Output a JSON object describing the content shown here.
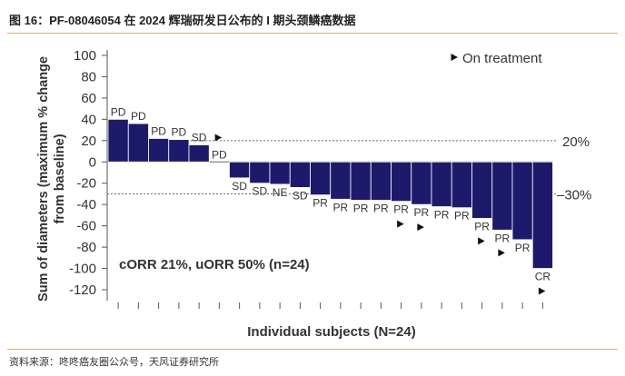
{
  "figure": {
    "title": "图 16：PF-08046054 在 2024 辉瑞研发日公布的 I 期头颈鳞癌数据",
    "source": "资料来源：咚咚癌友圈公众号，天风证券研究所"
  },
  "colors": {
    "bar": "#1d1a6c",
    "rule": "#dfae78",
    "text": "#333333",
    "axis": "#555555"
  },
  "chart_data": {
    "type": "bar",
    "title": "",
    "xlabel": "Individual subjects (N=24)",
    "ylabel_lines": [
      "Sum of diameters (maximum % change",
      "from baseline)"
    ],
    "ylim": [
      -120,
      100
    ],
    "yticks": [
      100,
      80,
      60,
      40,
      20,
      0,
      -20,
      -40,
      -60,
      -80,
      -100,
      -120
    ],
    "grid": false,
    "values": [
      40,
      36,
      22,
      21,
      16,
      0,
      -15,
      -20,
      -21,
      -24,
      -31,
      -35,
      -36,
      -36,
      -37,
      -40,
      -42,
      -43,
      -53,
      -64,
      -73,
      -100
    ],
    "responses": [
      "PD",
      "PD",
      "PD",
      "PD",
      "SD",
      "PD",
      "SD",
      "SD",
      "NE",
      "SD",
      "PR",
      "PR",
      "PR",
      "PR",
      "PR",
      "PR",
      "PR",
      "PR",
      "PR",
      "PR",
      "PR",
      "CR"
    ],
    "on_treatment": [
      false,
      false,
      false,
      false,
      true,
      false,
      false,
      false,
      false,
      false,
      false,
      false,
      false,
      false,
      true,
      true,
      false,
      false,
      true,
      true,
      false,
      true
    ],
    "legend": {
      "label": "On treatment",
      "placement": "top-right",
      "marker": "right-triangle"
    },
    "reference_lines": [
      {
        "value": 20,
        "label": "20%"
      },
      {
        "value": -30,
        "label": "–30%"
      }
    ],
    "annotation": "cORR 21%, uORR 50% (n=24)"
  }
}
